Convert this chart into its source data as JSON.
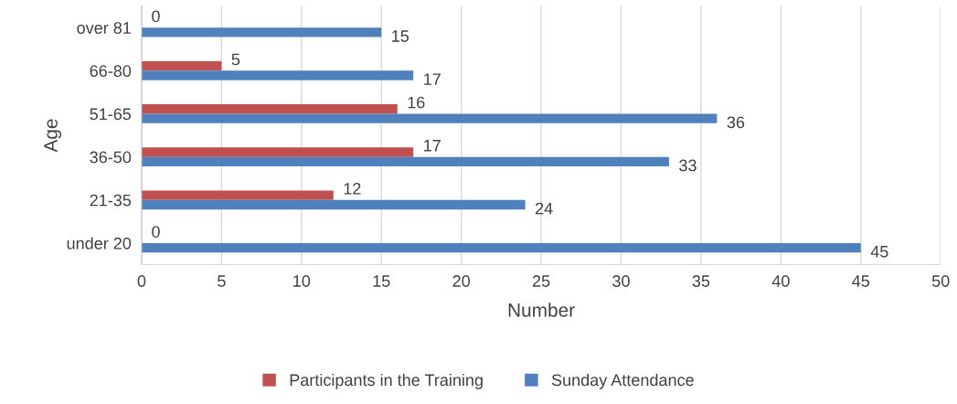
{
  "chart_data": {
    "type": "bar",
    "orientation": "horizontal",
    "xlabel": "Number",
    "ylabel": "Age",
    "categories": [
      "over 81",
      "66-80",
      "51-65",
      "36-50",
      "21-35",
      "under 20"
    ],
    "series": [
      {
        "name": "Participants in the Training",
        "color": "#c0504d",
        "values": [
          0,
          5,
          16,
          17,
          12,
          0
        ]
      },
      {
        "name": "Sunday Attendance",
        "color": "#4f81bd",
        "values": [
          15,
          17,
          36,
          33,
          24,
          45
        ]
      }
    ],
    "xlim": [
      0,
      50
    ],
    "xticks": [
      0,
      5,
      10,
      15,
      20,
      25,
      30,
      35,
      40,
      45,
      50
    ],
    "grid": "x",
    "legend": "bottom",
    "data_labels": true
  }
}
